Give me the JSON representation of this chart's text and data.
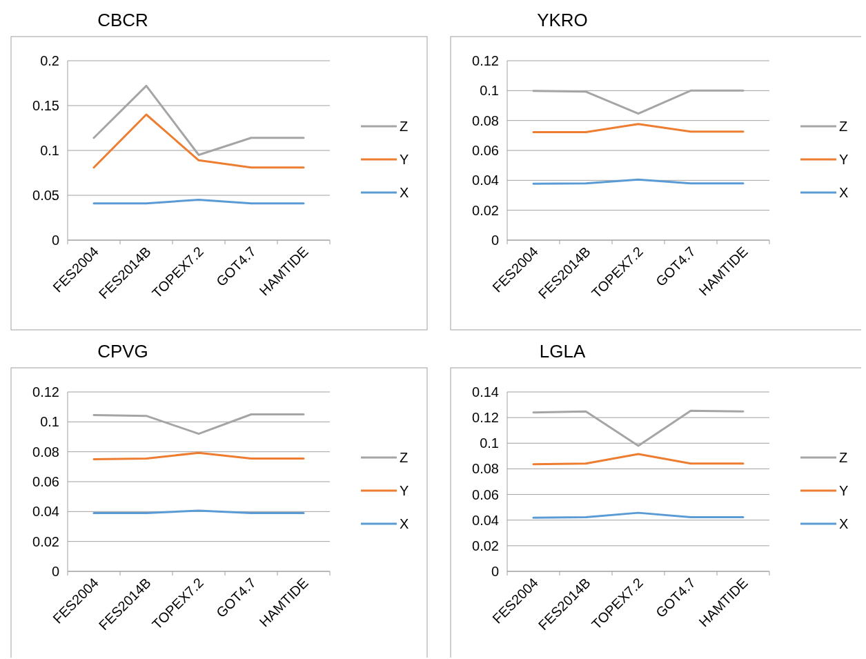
{
  "chart_data": [
    {
      "type": "line",
      "title": "CBCR",
      "categories": [
        "FES2004",
        "FES2014B",
        "TOPEX7.2",
        "GOT4.7",
        "HAMTIDE"
      ],
      "ylim": [
        0,
        0.2
      ],
      "yticks": [
        0,
        0.05,
        0.1,
        0.15,
        0.2
      ],
      "grid": "y",
      "legend": "right",
      "series": [
        {
          "name": "X",
          "color": "#5b9bd5",
          "values": [
            0.041,
            0.041,
            0.045,
            0.041,
            0.041
          ]
        },
        {
          "name": "Y",
          "color": "#ed7d31",
          "values": [
            0.081,
            0.14,
            0.089,
            0.081,
            0.081
          ]
        },
        {
          "name": "Z",
          "color": "#a5a5a5",
          "values": [
            0.114,
            0.172,
            0.095,
            0.114,
            0.114
          ]
        }
      ]
    },
    {
      "type": "line",
      "title": "YKRO",
      "categories": [
        "FES2004",
        "FES2014B",
        "TOPEX7.2",
        "GOT4.7",
        "HAMTIDE"
      ],
      "ylim": [
        0,
        0.12
      ],
      "yticks": [
        0,
        0.02,
        0.04,
        0.06,
        0.08,
        0.1,
        0.12
      ],
      "grid": "y",
      "legend": "right",
      "series": [
        {
          "name": "X",
          "color": "#5b9bd5",
          "values": [
            0.0377,
            0.038,
            0.0405,
            0.038,
            0.038
          ]
        },
        {
          "name": "Y",
          "color": "#ed7d31",
          "values": [
            0.0722,
            0.0722,
            0.0777,
            0.0726,
            0.0726
          ]
        },
        {
          "name": "Z",
          "color": "#a5a5a5",
          "values": [
            0.0998,
            0.0993,
            0.0846,
            0.1,
            0.1
          ]
        }
      ]
    },
    {
      "type": "line",
      "title": "CPVG",
      "categories": [
        "FES2004",
        "FES2014B",
        "TOPEX7.2",
        "GOT4.7",
        "HAMTIDE"
      ],
      "ylim": [
        0,
        0.12
      ],
      "yticks": [
        0,
        0.02,
        0.04,
        0.06,
        0.08,
        0.1,
        0.12
      ],
      "grid": "y",
      "legend": "right",
      "series": [
        {
          "name": "X",
          "color": "#5b9bd5",
          "values": [
            0.039,
            0.039,
            0.0406,
            0.039,
            0.039
          ]
        },
        {
          "name": "Y",
          "color": "#ed7d31",
          "values": [
            0.075,
            0.0755,
            0.0793,
            0.0755,
            0.0755
          ]
        },
        {
          "name": "Z",
          "color": "#a5a5a5",
          "values": [
            0.1045,
            0.104,
            0.092,
            0.105,
            0.105
          ]
        }
      ]
    },
    {
      "type": "line",
      "title": "LGLA",
      "categories": [
        "FES2004",
        "FES2014B",
        "TOPEX7.2",
        "GOT4.7",
        "HAMTIDE"
      ],
      "ylim": [
        0,
        0.14
      ],
      "yticks": [
        0,
        0.02,
        0.04,
        0.06,
        0.08,
        0.1,
        0.12,
        0.14
      ],
      "grid": "y",
      "legend": "right",
      "series": [
        {
          "name": "X",
          "color": "#5b9bd5",
          "values": [
            0.0418,
            0.0423,
            0.0457,
            0.0423,
            0.0423
          ]
        },
        {
          "name": "Y",
          "color": "#ed7d31",
          "values": [
            0.0836,
            0.0841,
            0.0915,
            0.0841,
            0.0841
          ]
        },
        {
          "name": "Z",
          "color": "#a5a5a5",
          "values": [
            0.124,
            0.1248,
            0.098,
            0.1253,
            0.1248
          ]
        }
      ]
    }
  ]
}
